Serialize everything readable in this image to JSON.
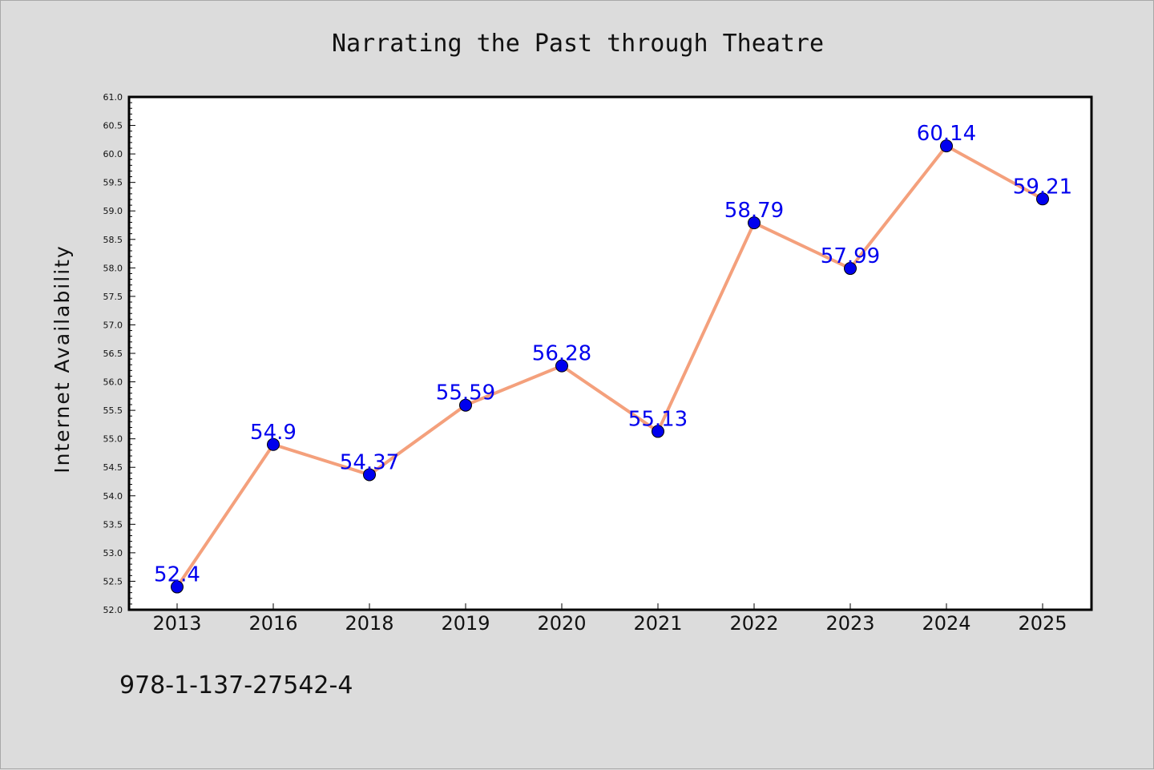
{
  "chart_data": {
    "type": "line",
    "title": "Narrating the Past through Theatre",
    "ylabel": "Internet Availability",
    "xlabel": "",
    "categories": [
      "2013",
      "2016",
      "2018",
      "2019",
      "2020",
      "2021",
      "2022",
      "2023",
      "2024",
      "2025"
    ],
    "series": [
      {
        "values": [
          52.4,
          54.9,
          54.37,
          55.59,
          56.28,
          55.13,
          58.79,
          57.99,
          60.14,
          59.21
        ],
        "labels": [
          "52.4",
          "54.9",
          "54.37",
          "55.59",
          "56.28",
          "55.13",
          "58.79",
          "57.99",
          "60.14",
          "59.21"
        ],
        "line_color": "#f4a07c",
        "marker_color": "#0000ee"
      }
    ],
    "ylim": [
      52.0,
      61.0
    ],
    "yticks": [
      "52.0",
      "52.5",
      "53.0",
      "53.5",
      "54.0",
      "54.5",
      "55.0",
      "55.5",
      "56.0",
      "56.5",
      "57.0",
      "57.5",
      "58.0",
      "58.5",
      "59.0",
      "59.5",
      "60.0",
      "60.5",
      "61.0"
    ],
    "grid": false,
    "legend": "none"
  },
  "footer": {
    "code": "978-1-137-27542-4"
  },
  "colors": {
    "background": "#dcdcdc",
    "plot_background": "#ffffff",
    "line": "#f4a07c",
    "marker": "#0000ee",
    "data_label": "#0000ee"
  }
}
